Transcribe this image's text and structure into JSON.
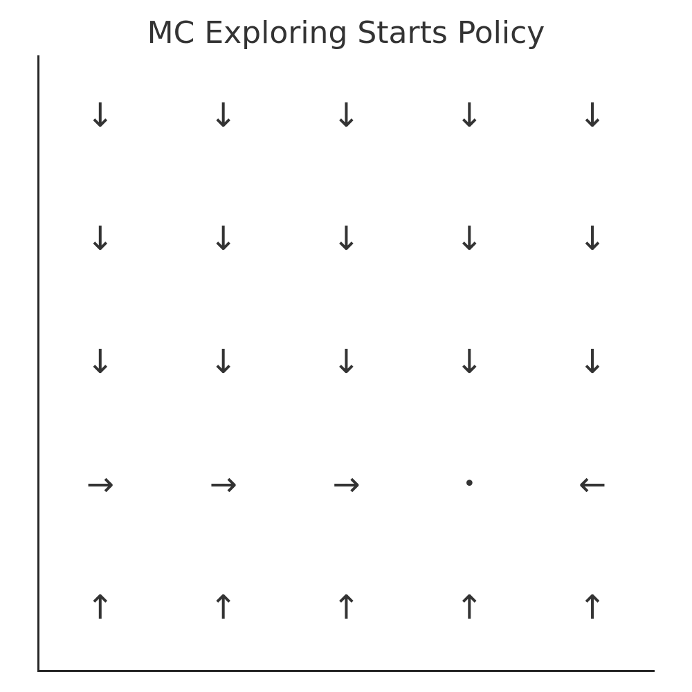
{
  "title": "MC Exploring Starts Policy",
  "grid": {
    "rows": 5,
    "cols": 5,
    "actions": [
      [
        "down",
        "down",
        "down",
        "down",
        "down"
      ],
      [
        "down",
        "down",
        "down",
        "down",
        "down"
      ],
      [
        "down",
        "down",
        "down",
        "down",
        "down"
      ],
      [
        "right",
        "right",
        "right",
        "terminal",
        "left"
      ],
      [
        "up",
        "up",
        "up",
        "up",
        "up"
      ]
    ]
  },
  "glyphs": {
    "up": "↑",
    "down": "↓",
    "left": "←",
    "right": "→",
    "terminal": "•"
  },
  "colors": {
    "text": "#333333",
    "axis": "#262626",
    "background": "#ffffff"
  }
}
